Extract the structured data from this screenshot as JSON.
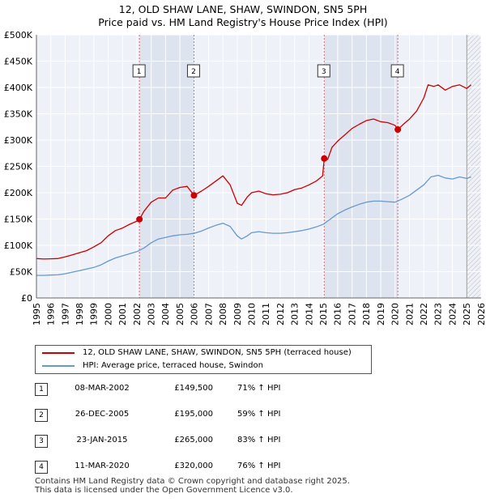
{
  "title_line1": "12, OLD SHAW LANE, SHAW, SWINDON, SN5 5PH",
  "title_line2": "Price paid vs. HM Land Registry's House Price Index (HPI)",
  "chart_data": {
    "type": "line",
    "xlim": [
      1995,
      2026
    ],
    "ylim": [
      0,
      500000
    ],
    "yticks": [
      0,
      50000,
      100000,
      150000,
      200000,
      250000,
      300000,
      350000,
      400000,
      450000,
      500000
    ],
    "ytick_labels": [
      "£0",
      "£50K",
      "£100K",
      "£150K",
      "£200K",
      "£250K",
      "£300K",
      "£350K",
      "£400K",
      "£450K",
      "£500K"
    ],
    "xticks": [
      1995,
      1996,
      1997,
      1998,
      1999,
      2000,
      2001,
      2002,
      2003,
      2004,
      2005,
      2006,
      2007,
      2008,
      2009,
      2010,
      2011,
      2012,
      2013,
      2014,
      2015,
      2016,
      2017,
      2018,
      2019,
      2020,
      2021,
      2022,
      2023,
      2024,
      2025,
      2026
    ],
    "xtick_labels": [
      "1995",
      "1996",
      "1997",
      "1998",
      "1999",
      "2000",
      "2001",
      "2002",
      "2003",
      "2004",
      "2005",
      "2006",
      "2007",
      "2008",
      "2009",
      "2010",
      "2011",
      "2012",
      "2013",
      "2014",
      "2015",
      "2016",
      "2017",
      "2018",
      "2019",
      "2020",
      "2021",
      "2022",
      "2023",
      "2024",
      "2025",
      "2026"
    ],
    "grid": true,
    "shaded_spans": [
      [
        2002.18,
        2005.98
      ],
      [
        2015.06,
        2020.19
      ]
    ],
    "hatched_from": 2025.0,
    "series": [
      {
        "name": "12, OLD SHAW LANE, SHAW, SWINDON, SN5 5PH (terraced house)",
        "color": "#cc0000",
        "x": [
          1995.0,
          1995.5,
          1996.0,
          1996.5,
          1997.0,
          1997.5,
          1998.0,
          1998.5,
          1999.0,
          1999.5,
          2000.0,
          2000.5,
          2001.0,
          2001.5,
          2002.0,
          2002.18,
          2002.5,
          2003.0,
          2003.5,
          2004.0,
          2004.5,
          2005.0,
          2005.5,
          2005.98,
          2006.5,
          2007.0,
          2007.5,
          2008.0,
          2008.5,
          2009.0,
          2009.3,
          2009.7,
          2010.0,
          2010.5,
          2011.0,
          2011.5,
          2012.0,
          2012.5,
          2013.0,
          2013.5,
          2014.0,
          2014.5,
          2014.95,
          2015.06,
          2015.3,
          2015.6,
          2016.0,
          2016.5,
          2017.0,
          2017.5,
          2018.0,
          2018.5,
          2019.0,
          2019.5,
          2020.0,
          2020.19,
          2020.5,
          2021.0,
          2021.5,
          2022.0,
          2022.3,
          2022.7,
          2023.0,
          2023.5,
          2024.0,
          2024.5,
          2025.0,
          2025.3
        ],
        "y": [
          75000,
          74000,
          74500,
          75000,
          78000,
          82000,
          86000,
          90000,
          97000,
          105000,
          118000,
          128000,
          133000,
          140000,
          146000,
          149500,
          165000,
          182000,
          190000,
          190000,
          205000,
          210000,
          212000,
          195000,
          203000,
          212000,
          222000,
          232000,
          215000,
          180000,
          176000,
          192000,
          200000,
          203000,
          198000,
          196000,
          197000,
          200000,
          206000,
          209000,
          215000,
          222000,
          232000,
          265000,
          263000,
          286000,
          298000,
          310000,
          322000,
          330000,
          337000,
          340000,
          335000,
          333000,
          328000,
          320000,
          328000,
          340000,
          355000,
          380000,
          405000,
          402000,
          405000,
          395000,
          402000,
          405000,
          398000,
          405000
        ]
      },
      {
        "name": "HPI: Average price, terraced house, Swindon",
        "color": "#6699cc",
        "x": [
          1995.0,
          1995.5,
          1996.0,
          1996.5,
          1997.0,
          1997.5,
          1998.0,
          1998.5,
          1999.0,
          1999.5,
          2000.0,
          2000.5,
          2001.0,
          2001.5,
          2002.0,
          2002.5,
          2003.0,
          2003.5,
          2004.0,
          2004.5,
          2005.0,
          2005.5,
          2006.0,
          2006.5,
          2007.0,
          2007.5,
          2008.0,
          2008.5,
          2009.0,
          2009.3,
          2009.7,
          2010.0,
          2010.5,
          2011.0,
          2011.5,
          2012.0,
          2012.5,
          2013.0,
          2013.5,
          2014.0,
          2014.5,
          2015.0,
          2015.5,
          2016.0,
          2016.5,
          2017.0,
          2017.5,
          2018.0,
          2018.5,
          2019.0,
          2019.5,
          2020.0,
          2020.5,
          2021.0,
          2021.5,
          2022.0,
          2022.5,
          2023.0,
          2023.5,
          2024.0,
          2024.5,
          2025.0,
          2025.3
        ],
        "y": [
          43000,
          43000,
          43500,
          44000,
          46000,
          49000,
          52000,
          55000,
          58000,
          63000,
          70000,
          76000,
          80000,
          84000,
          88000,
          95000,
          105000,
          112000,
          115000,
          118000,
          120000,
          121000,
          123000,
          127000,
          133000,
          138000,
          142000,
          136000,
          118000,
          112000,
          118000,
          124000,
          126000,
          124000,
          123000,
          123000,
          124000,
          126000,
          128000,
          131000,
          135000,
          140000,
          150000,
          160000,
          167000,
          173000,
          178000,
          182000,
          184000,
          184000,
          183000,
          182000,
          188000,
          195000,
          205000,
          215000,
          230000,
          233000,
          228000,
          226000,
          230000,
          227000,
          230000
        ]
      }
    ],
    "sale_markers": [
      {
        "label": "1",
        "x": 2002.18,
        "y": 149500
      },
      {
        "label": "2",
        "x": 2005.98,
        "y": 195000
      },
      {
        "label": "3",
        "x": 2015.06,
        "y": 265000
      },
      {
        "label": "4",
        "x": 2020.19,
        "y": 320000
      }
    ]
  },
  "legend": {
    "property_label": "12, OLD SHAW LANE, SHAW, SWINDON, SN5 5PH (terraced house)",
    "hpi_label": "HPI: Average price, terraced house, Swindon"
  },
  "sales": [
    {
      "num": "1",
      "date": "08-MAR-2002",
      "price": "£149,500",
      "hpi": "71% ↑ HPI"
    },
    {
      "num": "2",
      "date": "26-DEC-2005",
      "price": "£195,000",
      "hpi": "59% ↑ HPI"
    },
    {
      "num": "3",
      "date": "23-JAN-2015",
      "price": "£265,000",
      "hpi": "83% ↑ HPI"
    },
    {
      "num": "4",
      "date": "11-MAR-2020",
      "price": "£320,000",
      "hpi": "76% ↑ HPI"
    }
  ],
  "footer": {
    "line1": "Contains HM Land Registry data © Crown copyright and database right 2025.",
    "line2": "This data is licensed under the Open Government Licence v3.0."
  }
}
